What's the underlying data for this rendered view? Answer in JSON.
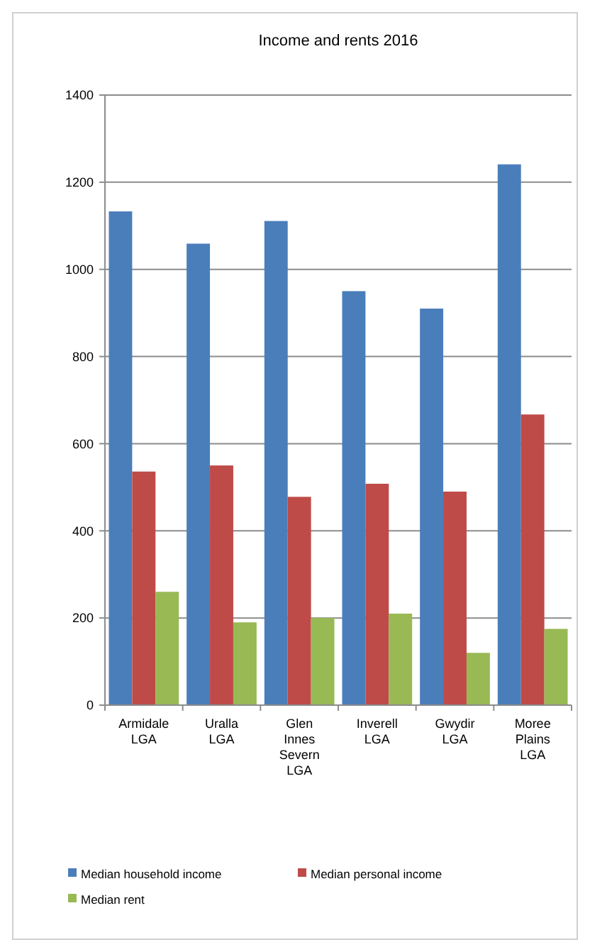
{
  "chart_data": {
    "type": "bar",
    "title": "Income and rents 2016",
    "categories": [
      "Armidale LGA",
      "Uralla LGA",
      "Glen Innes Severn LGA",
      "Inverell LGA",
      "Gwydir LGA",
      "Moree Plains LGA"
    ],
    "series": [
      {
        "name": "Median household income",
        "color": "#4a7ebb",
        "values": [
          1133,
          1059,
          1111,
          950,
          910,
          1241
        ]
      },
      {
        "name": "Median personal income",
        "color": "#be4b48",
        "values": [
          536,
          550,
          478,
          508,
          490,
          667
        ]
      },
      {
        "name": "Median rent",
        "color": "#98b954",
        "values": [
          260,
          190,
          200,
          210,
          120,
          175
        ]
      }
    ],
    "ylim": [
      0,
      1400
    ],
    "yticks": [
      0,
      200,
      400,
      600,
      800,
      1000,
      1200,
      1400
    ],
    "grid": "y",
    "legend": "bottom"
  }
}
